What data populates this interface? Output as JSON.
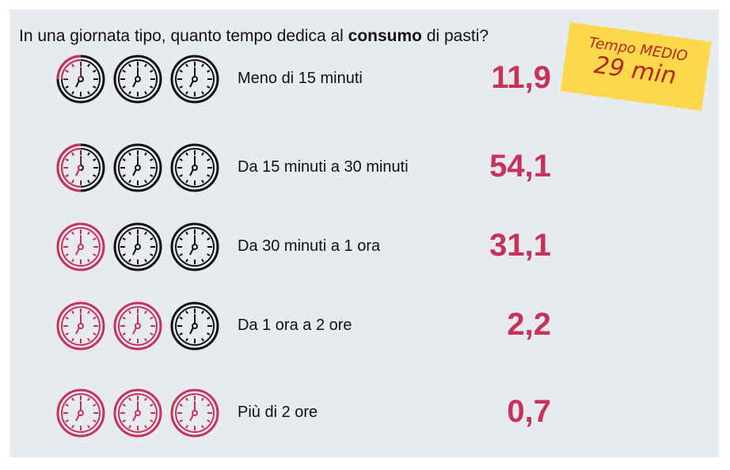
{
  "title": {
    "prefix": "In una giornata tipo, quanto tempo dedica al ",
    "bold": "consumo",
    "suffix": " di pasti?"
  },
  "note": {
    "line1": "Tempo MEDIO",
    "line2": "29 min"
  },
  "colors": {
    "accent": "#c8325a",
    "note_bg": "#fcd84a",
    "note_text": "#b8231e",
    "panel": "#e7eaef"
  },
  "chart_data": {
    "type": "table",
    "unit_icon": "clock-icon",
    "rows": [
      {
        "label": "Meno di 15 minuti",
        "value": "11,9",
        "filled_clocks": 0.25
      },
      {
        "label": "Da 15 minuti a 30 minuti",
        "value": "54,1",
        "filled_clocks": 0.5
      },
      {
        "label": "Da 30 minuti a 1 ora",
        "value": "31,1",
        "filled_clocks": 1
      },
      {
        "label": "Da 1 ora a 2 ore",
        "value": "2,2",
        "filled_clocks": 2
      },
      {
        "label": "Più di 2 ore",
        "value": "0,7",
        "filled_clocks": 3
      }
    ]
  }
}
